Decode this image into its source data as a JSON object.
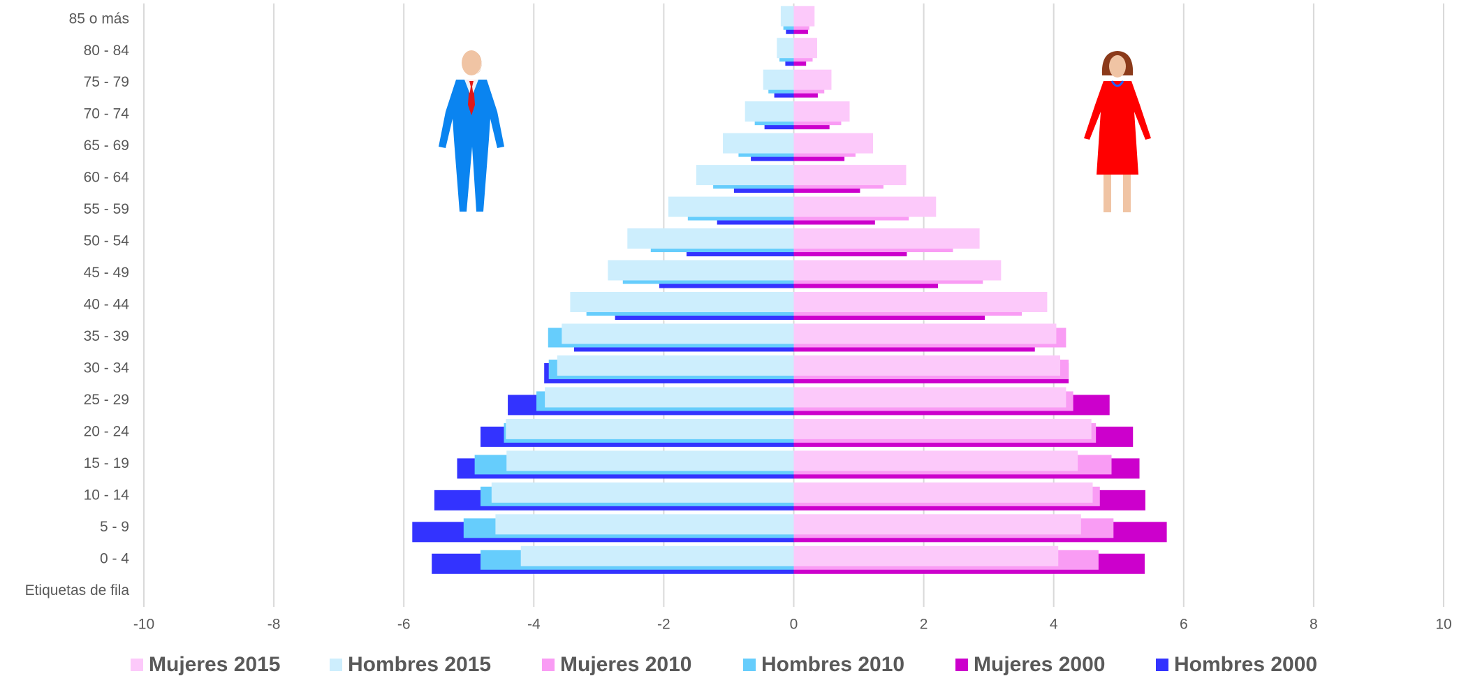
{
  "chart_data": {
    "type": "pyramid",
    "categories": [
      "Etiquetas de fila",
      "0  -  4",
      "5  -  9",
      "10 - 14",
      "15 - 19",
      "20 - 24",
      "25 - 29",
      "30 - 34",
      "35 - 39",
      "40 - 44",
      "45 - 49",
      "50 - 54",
      "55 - 59",
      "60 - 64",
      "65 - 69",
      "70 - 74",
      "75 - 79",
      "80 - 84",
      "85 o más"
    ],
    "series": [
      {
        "name": "Mujeres 2015",
        "color": "#fcc9fa",
        "values": [
          null,
          4.07,
          4.42,
          4.6,
          4.37,
          4.58,
          4.19,
          4.1,
          4.04,
          3.9,
          3.19,
          2.86,
          2.19,
          1.73,
          1.22,
          0.86,
          0.58,
          0.36,
          0.32
        ]
      },
      {
        "name": "Hombres 2015",
        "color": "#cdeefd",
        "values": [
          null,
          -4.2,
          -4.59,
          -4.65,
          -4.42,
          -4.43,
          -3.83,
          -3.64,
          -3.57,
          -3.44,
          -2.86,
          -2.56,
          -1.93,
          -1.5,
          -1.09,
          -0.75,
          -0.47,
          -0.26,
          -0.2
        ]
      },
      {
        "name": "Mujeres 2010",
        "color": "#f99cf4",
        "values": [
          null,
          4.69,
          4.92,
          4.71,
          4.89,
          4.65,
          4.3,
          4.23,
          4.19,
          3.51,
          2.91,
          2.45,
          1.77,
          1.38,
          0.95,
          0.73,
          0.47,
          0.29,
          0.24
        ]
      },
      {
        "name": "Hombres 2010",
        "color": "#66cdfc",
        "values": [
          null,
          -4.82,
          -5.08,
          -4.82,
          -4.91,
          -4.46,
          -3.96,
          -3.77,
          -3.78,
          -3.19,
          -2.63,
          -2.2,
          -1.63,
          -1.24,
          -0.85,
          -0.6,
          -0.39,
          -0.22,
          -0.16
        ]
      },
      {
        "name": "Mujeres 2000",
        "color": "#cc00cc",
        "values": [
          null,
          5.4,
          5.74,
          5.41,
          5.32,
          5.22,
          4.86,
          4.23,
          3.71,
          2.94,
          2.22,
          1.74,
          1.25,
          1.02,
          0.78,
          0.55,
          0.37,
          0.19,
          0.22
        ]
      },
      {
        "name": "Hombres 2000",
        "color": "#3333ff",
        "values": [
          null,
          -5.57,
          -5.87,
          -5.53,
          -5.18,
          -4.82,
          -4.4,
          -3.84,
          -3.38,
          -2.75,
          -2.07,
          -1.65,
          -1.18,
          -0.92,
          -0.66,
          -0.45,
          -0.3,
          -0.13,
          -0.12
        ]
      }
    ],
    "xlim": [
      -10,
      10
    ],
    "xticks": [
      -10,
      -8,
      -6,
      -4,
      -2,
      0,
      2,
      4,
      6,
      8,
      10
    ],
    "grid": true,
    "legend": "bottom"
  }
}
